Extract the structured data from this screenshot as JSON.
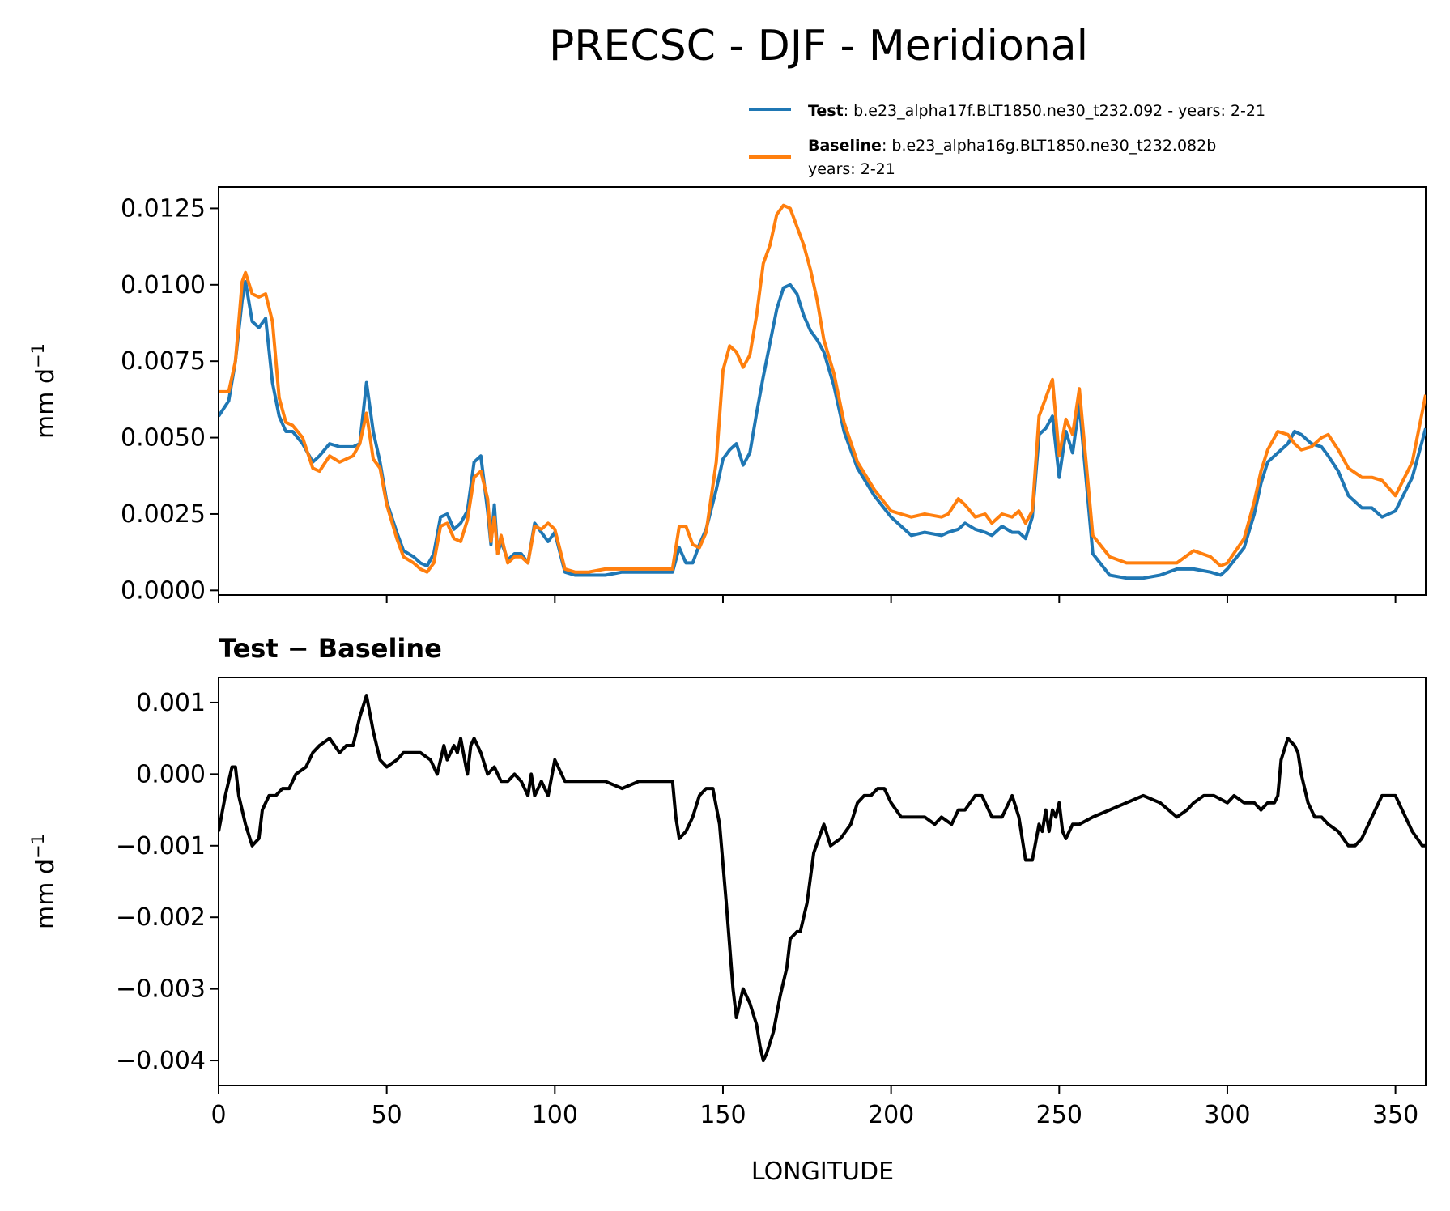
{
  "chart_data": {
    "title": "PRECSC - DJF - Meridional",
    "xlabel": "LONGITUDE",
    "xlim": [
      0,
      359
    ],
    "x_ticks": [
      0,
      50,
      100,
      150,
      200,
      250,
      300,
      350
    ],
    "x_tick_labels": [
      "0",
      "50",
      "100",
      "150",
      "200",
      "250",
      "300",
      "350"
    ],
    "legend": {
      "test": {
        "name": "Test",
        "text": ": b.e23_alpha17f.BLT1850.ne30_t232.092 - years: 2-21"
      },
      "baseline": {
        "name": "Baseline",
        "text": ": b.e23_alpha16g.BLT1850.ne30_t232.082b",
        "text2": "years: 2-21"
      }
    },
    "colors": {
      "test": "#1f77b4",
      "baseline": "#ff7f0e",
      "diff": "#000000"
    },
    "panels": [
      {
        "type": "line",
        "ylabel": "mm d−1",
        "ylim": [
          -0.00015,
          0.0132
        ],
        "y_ticks": [
          0,
          0.0025,
          0.005,
          0.0075,
          0.01,
          0.0125
        ],
        "y_tick_labels": [
          "0.0000",
          "0.0025",
          "0.0050",
          "0.0075",
          "0.0100",
          "0.0125"
        ],
        "series": [
          {
            "name": "Test",
            "x": [
              0,
              3,
              5,
              7,
              8,
              10,
              12,
              14,
              16,
              18,
              20,
              22,
              25,
              28,
              30,
              33,
              36,
              40,
              42,
              44,
              46,
              48,
              50,
              53,
              55,
              58,
              60,
              62,
              64,
              66,
              68,
              70,
              72,
              74,
              76,
              78,
              80,
              81,
              82,
              83,
              84,
              86,
              88,
              90,
              92,
              94,
              96,
              98,
              100,
              103,
              106,
              110,
              115,
              120,
              125,
              130,
              135,
              137,
              139,
              141,
              143,
              145,
              148,
              150,
              152,
              154,
              156,
              158,
              160,
              162,
              164,
              166,
              168,
              170,
              172,
              174,
              176,
              178,
              180,
              183,
              186,
              190,
              195,
              200,
              203,
              206,
              210,
              215,
              217,
              220,
              222,
              225,
              228,
              230,
              233,
              236,
              238,
              240,
              242,
              244,
              246,
              248,
              250,
              252,
              254,
              256,
              260,
              265,
              270,
              275,
              280,
              285,
              290,
              295,
              298,
              300,
              305,
              308,
              310,
              312,
              315,
              318,
              320,
              322,
              325,
              328,
              330,
              333,
              336,
              340,
              343,
              346,
              350,
              355,
              359
            ],
            "y": [
              0.0057,
              0.0062,
              0.0075,
              0.0095,
              0.0101,
              0.0088,
              0.0086,
              0.0089,
              0.0068,
              0.0057,
              0.0052,
              0.0052,
              0.0048,
              0.0042,
              0.0044,
              0.0048,
              0.0047,
              0.0047,
              0.0048,
              0.0068,
              0.0052,
              0.0042,
              0.0029,
              0.0019,
              0.0013,
              0.0011,
              0.0009,
              0.0008,
              0.0012,
              0.0024,
              0.0025,
              0.002,
              0.0022,
              0.0026,
              0.0042,
              0.0044,
              0.0026,
              0.0015,
              0.0028,
              0.0012,
              0.0016,
              0.001,
              0.0012,
              0.0012,
              0.0009,
              0.0022,
              0.0019,
              0.0016,
              0.0019,
              0.0006,
              0.0005,
              0.0005,
              0.0005,
              0.0006,
              0.0006,
              0.0006,
              0.0006,
              0.0014,
              0.0009,
              0.0009,
              0.0015,
              0.002,
              0.0033,
              0.0043,
              0.0046,
              0.0048,
              0.0041,
              0.0045,
              0.0058,
              0.007,
              0.0081,
              0.0092,
              0.0099,
              0.01,
              0.0097,
              0.009,
              0.0085,
              0.0082,
              0.0078,
              0.0067,
              0.0052,
              0.004,
              0.0031,
              0.0024,
              0.0021,
              0.0018,
              0.0019,
              0.0018,
              0.0019,
              0.002,
              0.0022,
              0.002,
              0.0019,
              0.0018,
              0.0021,
              0.0019,
              0.0019,
              0.0017,
              0.0024,
              0.0051,
              0.0053,
              0.0057,
              0.0037,
              0.0052,
              0.0045,
              0.0061,
              0.0012,
              0.0005,
              0.0004,
              0.0004,
              0.0005,
              0.0007,
              0.0007,
              0.0006,
              0.0005,
              0.0007,
              0.0014,
              0.0025,
              0.0035,
              0.0042,
              0.0045,
              0.0048,
              0.0052,
              0.0051,
              0.0048,
              0.0047,
              0.0044,
              0.0039,
              0.0031,
              0.0027,
              0.0027,
              0.0024,
              0.0026,
              0.0037,
              0.0053
            ]
          },
          {
            "name": "Baseline",
            "x": [
              0,
              3,
              5,
              7,
              8,
              10,
              12,
              14,
              16,
              18,
              20,
              22,
              25,
              28,
              30,
              33,
              36,
              40,
              42,
              44,
              46,
              48,
              50,
              53,
              55,
              58,
              60,
              62,
              64,
              66,
              68,
              70,
              72,
              74,
              76,
              78,
              80,
              81,
              82,
              83,
              84,
              86,
              88,
              90,
              92,
              94,
              96,
              98,
              100,
              103,
              106,
              110,
              115,
              120,
              125,
              130,
              135,
              137,
              139,
              141,
              143,
              145,
              148,
              150,
              152,
              154,
              156,
              158,
              160,
              162,
              164,
              166,
              168,
              170,
              172,
              174,
              176,
              178,
              180,
              183,
              186,
              190,
              195,
              200,
              203,
              206,
              210,
              215,
              217,
              220,
              222,
              225,
              228,
              230,
              233,
              236,
              238,
              240,
              242,
              244,
              246,
              248,
              250,
              252,
              254,
              256,
              260,
              265,
              270,
              275,
              280,
              285,
              290,
              295,
              298,
              300,
              305,
              308,
              310,
              312,
              315,
              318,
              320,
              322,
              325,
              328,
              330,
              333,
              336,
              340,
              343,
              346,
              350,
              355,
              359
            ],
            "y": [
              0.0065,
              0.0065,
              0.0075,
              0.0101,
              0.0104,
              0.0097,
              0.0096,
              0.0097,
              0.0088,
              0.0063,
              0.0055,
              0.0054,
              0.005,
              0.004,
              0.0039,
              0.0044,
              0.0042,
              0.0044,
              0.0048,
              0.0058,
              0.0043,
              0.004,
              0.0028,
              0.0017,
              0.0011,
              0.0009,
              0.0007,
              0.0006,
              0.0009,
              0.0021,
              0.0022,
              0.0017,
              0.0016,
              0.0023,
              0.0037,
              0.0039,
              0.003,
              0.0016,
              0.0024,
              0.0012,
              0.0018,
              0.0009,
              0.0011,
              0.0011,
              0.0009,
              0.0021,
              0.002,
              0.0022,
              0.002,
              0.0007,
              0.0006,
              0.0006,
              0.0007,
              0.0007,
              0.0007,
              0.0007,
              0.0007,
              0.0021,
              0.0021,
              0.0015,
              0.0014,
              0.0019,
              0.0042,
              0.0072,
              0.008,
              0.0078,
              0.0073,
              0.0077,
              0.009,
              0.0107,
              0.0113,
              0.0123,
              0.0126,
              0.0125,
              0.0119,
              0.0113,
              0.0105,
              0.0095,
              0.0082,
              0.0071,
              0.0055,
              0.0042,
              0.0033,
              0.0026,
              0.0025,
              0.0024,
              0.0025,
              0.0024,
              0.0025,
              0.003,
              0.0028,
              0.0024,
              0.0025,
              0.0022,
              0.0025,
              0.0024,
              0.0026,
              0.0022,
              0.0026,
              0.0057,
              0.0063,
              0.0069,
              0.0044,
              0.0056,
              0.0051,
              0.0066,
              0.0018,
              0.0011,
              0.0009,
              0.0009,
              0.0009,
              0.0009,
              0.0013,
              0.0011,
              0.0008,
              0.0009,
              0.0017,
              0.0029,
              0.0039,
              0.0046,
              0.0052,
              0.0051,
              0.0048,
              0.0046,
              0.0047,
              0.005,
              0.0051,
              0.0046,
              0.004,
              0.0037,
              0.0037,
              0.0036,
              0.0031,
              0.0042,
              0.0064
            ]
          }
        ]
      },
      {
        "type": "line",
        "title": "Test − Baseline",
        "ylabel": "mm d−1",
        "ylim": [
          -0.00435,
          0.00135
        ],
        "y_ticks": [
          -0.004,
          -0.003,
          -0.002,
          -0.001,
          0,
          0.001
        ],
        "y_tick_labels": [
          "−0.004",
          "−0.003",
          "−0.002",
          "−0.001",
          "0.000",
          "0.001"
        ],
        "series": [
          {
            "name": "Test − Baseline",
            "x": [
              0,
              2,
              4,
              5,
              6,
              8,
              10,
              12,
              13,
              15,
              17,
              19,
              21,
              23,
              26,
              28,
              30,
              33,
              36,
              38,
              40,
              41,
              42,
              44,
              46,
              48,
              50,
              53,
              55,
              58,
              60,
              63,
              65,
              67,
              68,
              70,
              71,
              72,
              74,
              75,
              76,
              78,
              80,
              82,
              84,
              86,
              88,
              90,
              92,
              93,
              94,
              95,
              96,
              98,
              100,
              103,
              106,
              110,
              115,
              120,
              125,
              130,
              135,
              136,
              137,
              139,
              141,
              143,
              145,
              147,
              149,
              151,
              153,
              154,
              155,
              156,
              158,
              160,
              161,
              162,
              163,
              165,
              167,
              169,
              170,
              172,
              173,
              175,
              177,
              180,
              182,
              185,
              188,
              190,
              192,
              194,
              196,
              198,
              200,
              203,
              206,
              210,
              213,
              215,
              218,
              220,
              222,
              225,
              227,
              230,
              233,
              236,
              238,
              239,
              240,
              242,
              244,
              245,
              246,
              247,
              248,
              249,
              250,
              251,
              252,
              254,
              256,
              260,
              265,
              270,
              275,
              280,
              285,
              288,
              290,
              293,
              296,
              300,
              302,
              305,
              308,
              310,
              312,
              314,
              315,
              316,
              318,
              320,
              321,
              322,
              324,
              326,
              328,
              330,
              333,
              336,
              338,
              340,
              343,
              346,
              350,
              352,
              355,
              358,
              359
            ],
            "y": [
              -0.0008,
              -0.0003,
              0.0001,
              0.0001,
              -0.0003,
              -0.0007,
              -0.001,
              -0.0009,
              -0.0005,
              -0.0003,
              -0.0003,
              -0.0002,
              -0.0002,
              0.0,
              0.0001,
              0.0003,
              0.0004,
              0.0005,
              0.0003,
              0.0004,
              0.0004,
              0.0006,
              0.0008,
              0.0011,
              0.0006,
              0.0002,
              0.0001,
              0.0002,
              0.0003,
              0.0003,
              0.0003,
              0.0002,
              0.0,
              0.0004,
              0.0002,
              0.0004,
              0.0003,
              0.0005,
              0.0,
              0.0004,
              0.0005,
              0.0003,
              0.0,
              0.0001,
              -0.0001,
              -0.0001,
              0.0,
              -0.0001,
              -0.0003,
              0.0,
              -0.0003,
              -0.0002,
              -0.0001,
              -0.0003,
              0.0002,
              -0.0001,
              -0.0001,
              -0.0001,
              -0.0001,
              -0.0002,
              -0.0001,
              -0.0001,
              -0.0001,
              -0.0006,
              -0.0009,
              -0.0008,
              -0.0006,
              -0.0003,
              -0.0002,
              -0.0002,
              -0.0007,
              -0.0018,
              -0.003,
              -0.0034,
              -0.0032,
              -0.003,
              -0.0032,
              -0.0035,
              -0.0038,
              -0.004,
              -0.0039,
              -0.0036,
              -0.0031,
              -0.0027,
              -0.0023,
              -0.0022,
              -0.0022,
              -0.0018,
              -0.0011,
              -0.0007,
              -0.001,
              -0.0009,
              -0.0007,
              -0.0004,
              -0.0003,
              -0.0003,
              -0.0002,
              -0.0002,
              -0.0004,
              -0.0006,
              -0.0006,
              -0.0006,
              -0.0007,
              -0.0006,
              -0.0007,
              -0.0005,
              -0.0005,
              -0.0003,
              -0.0003,
              -0.0006,
              -0.0006,
              -0.0003,
              -0.0006,
              -0.0009,
              -0.0012,
              -0.0012,
              -0.0007,
              -0.0008,
              -0.0005,
              -0.0008,
              -0.0005,
              -0.0006,
              -0.0004,
              -0.0008,
              -0.0009,
              -0.0007,
              -0.0007,
              -0.0006,
              -0.0005,
              -0.0004,
              -0.0003,
              -0.0004,
              -0.0006,
              -0.0005,
              -0.0004,
              -0.0003,
              -0.0003,
              -0.0004,
              -0.0003,
              -0.0004,
              -0.0004,
              -0.0005,
              -0.0004,
              -0.0004,
              -0.0003,
              0.0002,
              0.0005,
              0.0004,
              0.0003,
              0.0,
              -0.0004,
              -0.0006,
              -0.0006,
              -0.0007,
              -0.0008,
              -0.001,
              -0.001,
              -0.0009,
              -0.0006,
              -0.0003,
              -0.0003,
              -0.0005,
              -0.0008,
              -0.001,
              -0.001
            ]
          }
        ]
      }
    ]
  }
}
